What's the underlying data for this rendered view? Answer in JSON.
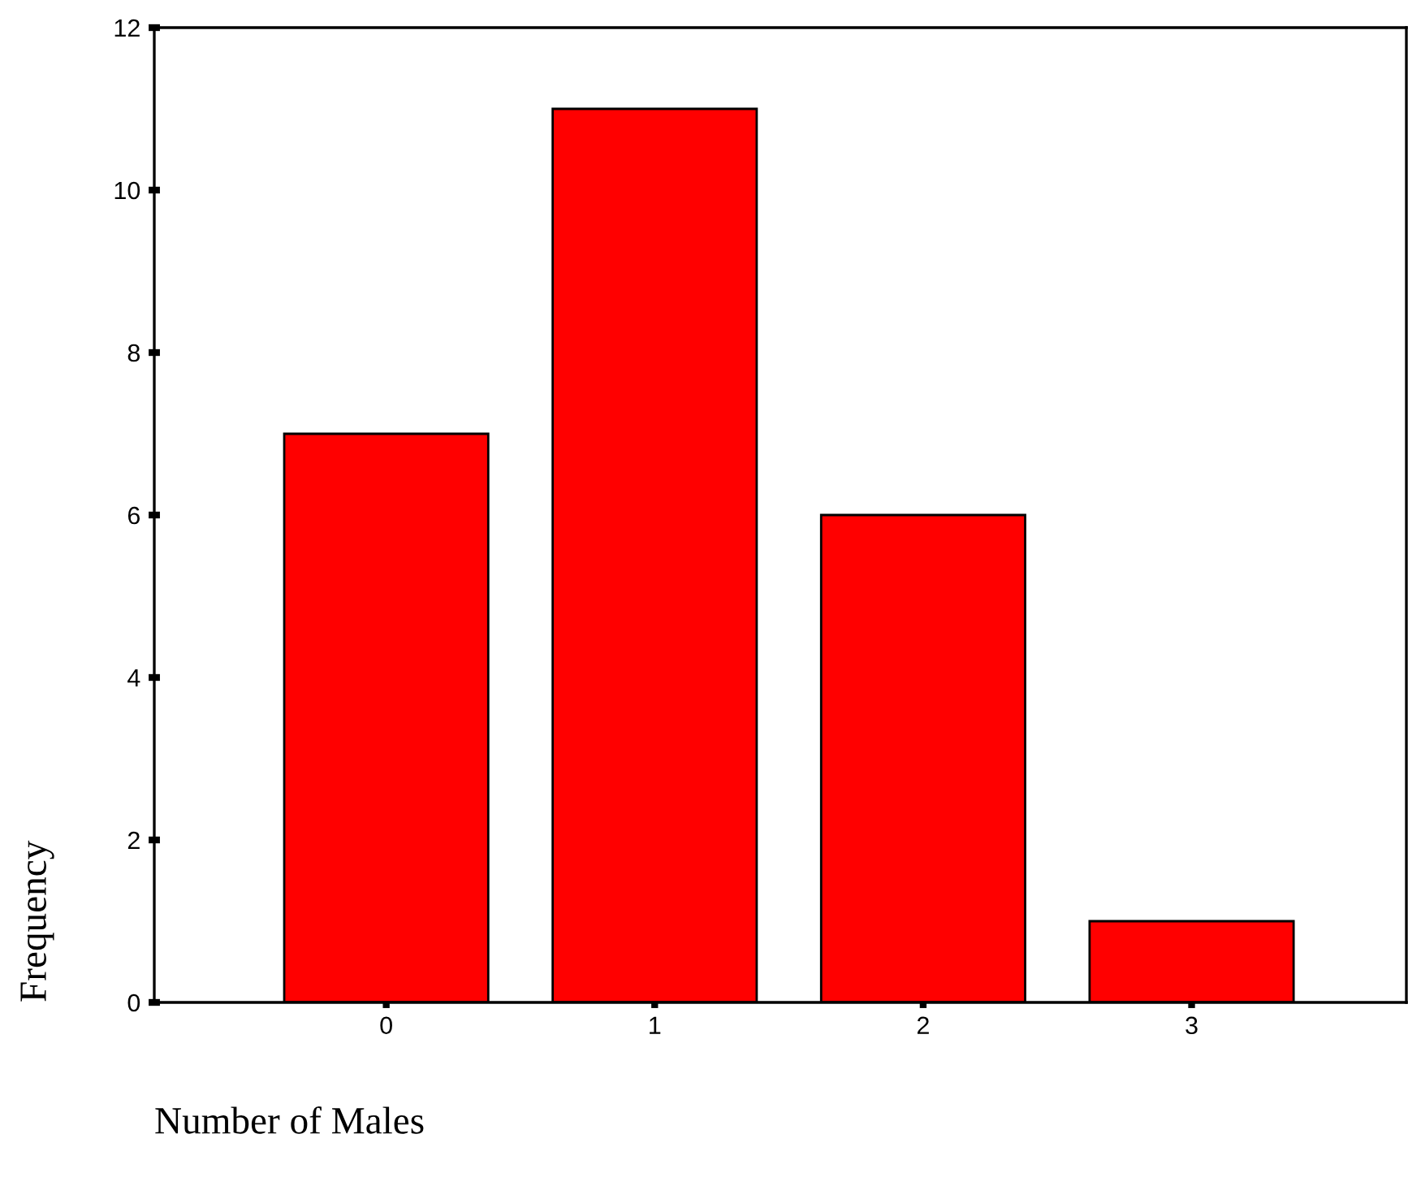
{
  "chart_data": {
    "type": "bar",
    "xlabel": "Number of Males",
    "ylabel": "Frequency",
    "categories": [
      "0",
      "1",
      "2",
      "3"
    ],
    "values": [
      7,
      11,
      6,
      1
    ],
    "color": "#ff0000",
    "ylim": [
      0,
      12
    ],
    "yticks": [
      0,
      2,
      4,
      6,
      8,
      10,
      12
    ],
    "grid": false,
    "legend": false
  }
}
